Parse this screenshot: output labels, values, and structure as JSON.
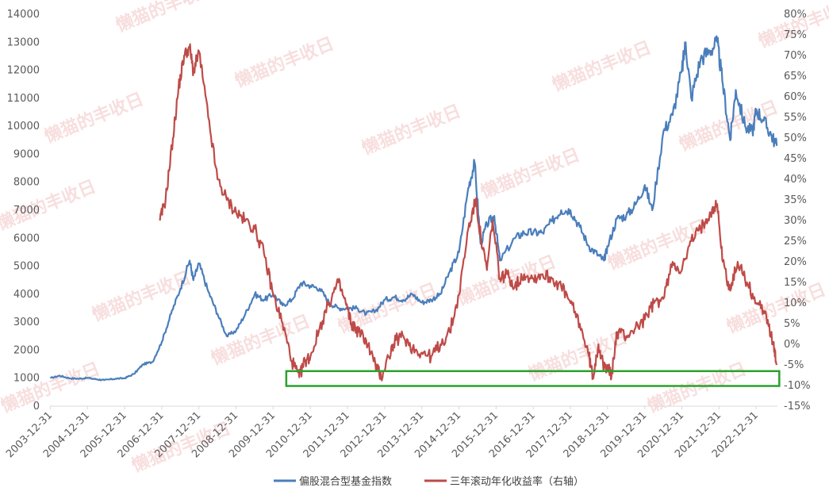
{
  "chart_data": {
    "type": "line",
    "watermark_text": "懒猫的丰收日",
    "x_tick_labels": [
      "2003-12-31",
      "2004-12-31",
      "2005-12-31",
      "2006-12-31",
      "2007-12-31",
      "2008-12-31",
      "2009-12-31",
      "2010-12-31",
      "2011-12-31",
      "2012-12-31",
      "2013-12-31",
      "2014-12-31",
      "2015-12-31",
      "2016-12-31",
      "2017-12-31",
      "2018-12-31",
      "2019-12-31",
      "2020-12-31",
      "2021-12-31",
      "2022-12-31"
    ],
    "x_range": [
      2003.99,
      2023.57
    ],
    "y_left": {
      "range": [
        0,
        14000
      ],
      "ticks": [
        0,
        1000,
        2000,
        3000,
        4000,
        5000,
        6000,
        7000,
        8000,
        9000,
        10000,
        11000,
        12000,
        13000,
        14000
      ],
      "tick_labels": [
        "0",
        "1000",
        "2000",
        "3000",
        "4000",
        "5000",
        "6000",
        "7000",
        "8000",
        "9000",
        "10000",
        "11000",
        "12000",
        "13000",
        "14000"
      ]
    },
    "y_right": {
      "range": [
        -15,
        80
      ],
      "ticks": [
        -15,
        -10,
        -5,
        0,
        5,
        10,
        15,
        20,
        25,
        30,
        35,
        40,
        45,
        50,
        55,
        60,
        65,
        70,
        75,
        80
      ],
      "tick_labels": [
        "-15%",
        "-10%",
        "-5%",
        "0%",
        "5%",
        "10%",
        "15%",
        "20%",
        "25%",
        "30%",
        "35%",
        "40%",
        "45%",
        "50%",
        "55%",
        "60%",
        "65%",
        "70%",
        "75%",
        "80%"
      ]
    },
    "grid": false,
    "legend_position": "bottom",
    "highlight_box": {
      "x": [
        2010.35,
        2023.62
      ],
      "y_right": [
        -10.1,
        -6.5
      ],
      "color": "#2ca02c"
    },
    "series": [
      {
        "name": "偏股混合型基金指数",
        "axis": "left",
        "color": "#4a7ebb",
        "points": [
          [
            2004.0,
            1000
          ],
          [
            2004.25,
            1090
          ],
          [
            2004.5,
            1000
          ],
          [
            2004.75,
            980
          ],
          [
            2005.0,
            1010
          ],
          [
            2005.25,
            960
          ],
          [
            2005.45,
            930
          ],
          [
            2005.75,
            980
          ],
          [
            2006.0,
            1000
          ],
          [
            2006.25,
            1150
          ],
          [
            2006.5,
            1500
          ],
          [
            2006.75,
            1580
          ],
          [
            2007.0,
            2300
          ],
          [
            2007.25,
            3300
          ],
          [
            2007.5,
            4200
          ],
          [
            2007.75,
            5200
          ],
          [
            2007.85,
            4500
          ],
          [
            2008.0,
            5100
          ],
          [
            2008.25,
            4100
          ],
          [
            2008.5,
            3300
          ],
          [
            2008.75,
            2500
          ],
          [
            2009.0,
            2700
          ],
          [
            2009.25,
            3300
          ],
          [
            2009.5,
            4000
          ],
          [
            2009.75,
            3800
          ],
          [
            2010.0,
            4000
          ],
          [
            2010.25,
            3600
          ],
          [
            2010.5,
            3800
          ],
          [
            2010.75,
            4400
          ],
          [
            2011.0,
            4300
          ],
          [
            2011.25,
            4200
          ],
          [
            2011.5,
            3700
          ],
          [
            2011.75,
            3500
          ],
          [
            2012.0,
            3500
          ],
          [
            2012.25,
            3500
          ],
          [
            2012.5,
            3300
          ],
          [
            2012.75,
            3400
          ],
          [
            2013.0,
            3800
          ],
          [
            2013.25,
            3900
          ],
          [
            2013.5,
            3800
          ],
          [
            2013.75,
            4000
          ],
          [
            2014.0,
            3700
          ],
          [
            2014.25,
            3800
          ],
          [
            2014.5,
            4000
          ],
          [
            2014.75,
            4800
          ],
          [
            2015.0,
            5500
          ],
          [
            2015.25,
            7800
          ],
          [
            2015.42,
            8700
          ],
          [
            2015.58,
            5800
          ],
          [
            2015.75,
            6500
          ],
          [
            2015.95,
            6800
          ],
          [
            2016.1,
            5200
          ],
          [
            2016.5,
            6000
          ],
          [
            2016.75,
            6200
          ],
          [
            2017.0,
            6200
          ],
          [
            2017.25,
            6200
          ],
          [
            2017.5,
            6600
          ],
          [
            2017.75,
            7000
          ],
          [
            2018.0,
            7000
          ],
          [
            2018.25,
            6400
          ],
          [
            2018.5,
            5700
          ],
          [
            2018.75,
            5400
          ],
          [
            2018.9,
            5200
          ],
          [
            2019.0,
            5700
          ],
          [
            2019.25,
            6700
          ],
          [
            2019.5,
            6800
          ],
          [
            2019.75,
            7200
          ],
          [
            2020.0,
            7900
          ],
          [
            2020.2,
            7000
          ],
          [
            2020.5,
            9800
          ],
          [
            2020.75,
            10400
          ],
          [
            2021.0,
            12000
          ],
          [
            2021.1,
            13000
          ],
          [
            2021.25,
            11000
          ],
          [
            2021.5,
            12400
          ],
          [
            2021.75,
            12700
          ],
          [
            2021.95,
            13000
          ],
          [
            2022.1,
            11500
          ],
          [
            2022.3,
            9500
          ],
          [
            2022.45,
            11300
          ],
          [
            2022.7,
            10000
          ],
          [
            2022.9,
            9800
          ],
          [
            2023.0,
            10600
          ],
          [
            2023.2,
            10200
          ],
          [
            2023.4,
            9700
          ],
          [
            2023.55,
            9300
          ]
        ]
      },
      {
        "name": "三年滚动年化收益率（右轴）",
        "axis": "right",
        "color": "#be4b48",
        "points": [
          [
            2006.95,
            30
          ],
          [
            2007.1,
            35
          ],
          [
            2007.3,
            50
          ],
          [
            2007.45,
            62
          ],
          [
            2007.6,
            70
          ],
          [
            2007.75,
            72
          ],
          [
            2007.85,
            66
          ],
          [
            2008.0,
            71
          ],
          [
            2008.25,
            55
          ],
          [
            2008.5,
            40
          ],
          [
            2008.75,
            35
          ],
          [
            2009.0,
            32
          ],
          [
            2009.25,
            30
          ],
          [
            2009.5,
            28
          ],
          [
            2009.75,
            22
          ],
          [
            2010.0,
            12
          ],
          [
            2010.25,
            5
          ],
          [
            2010.5,
            -4
          ],
          [
            2010.7,
            -8
          ],
          [
            2010.85,
            -4
          ],
          [
            2011.0,
            -3
          ],
          [
            2011.25,
            4
          ],
          [
            2011.5,
            10
          ],
          [
            2011.75,
            15
          ],
          [
            2011.95,
            10
          ],
          [
            2012.1,
            5
          ],
          [
            2012.3,
            3
          ],
          [
            2012.5,
            1
          ],
          [
            2012.75,
            -5
          ],
          [
            2012.9,
            -8
          ],
          [
            2013.1,
            -3
          ],
          [
            2013.3,
            1
          ],
          [
            2013.5,
            2
          ],
          [
            2013.75,
            -1
          ],
          [
            2014.0,
            -2
          ],
          [
            2014.25,
            -3
          ],
          [
            2014.5,
            0
          ],
          [
            2014.75,
            3
          ],
          [
            2015.0,
            12
          ],
          [
            2015.25,
            28
          ],
          [
            2015.45,
            35
          ],
          [
            2015.6,
            25
          ],
          [
            2015.75,
            18
          ],
          [
            2015.9,
            30
          ],
          [
            2016.1,
            16
          ],
          [
            2016.3,
            17
          ],
          [
            2016.5,
            14
          ],
          [
            2016.75,
            17
          ],
          [
            2017.0,
            16
          ],
          [
            2017.25,
            17
          ],
          [
            2017.5,
            16
          ],
          [
            2017.75,
            14
          ],
          [
            2018.0,
            10
          ],
          [
            2018.25,
            5
          ],
          [
            2018.5,
            -3
          ],
          [
            2018.6,
            -8
          ],
          [
            2018.75,
            0
          ],
          [
            2018.9,
            -6
          ],
          [
            2019.0,
            -5
          ],
          [
            2019.1,
            -8
          ],
          [
            2019.25,
            3
          ],
          [
            2019.5,
            2
          ],
          [
            2019.75,
            4
          ],
          [
            2020.0,
            6
          ],
          [
            2020.25,
            10
          ],
          [
            2020.5,
            11
          ],
          [
            2020.75,
            20
          ],
          [
            2021.0,
            18
          ],
          [
            2021.25,
            25
          ],
          [
            2021.5,
            28
          ],
          [
            2021.75,
            32
          ],
          [
            2021.95,
            34
          ],
          [
            2022.1,
            20
          ],
          [
            2022.3,
            13
          ],
          [
            2022.5,
            20
          ],
          [
            2022.75,
            15
          ],
          [
            2023.0,
            10
          ],
          [
            2023.25,
            8
          ],
          [
            2023.45,
            0
          ],
          [
            2023.55,
            -5
          ]
        ]
      }
    ]
  }
}
